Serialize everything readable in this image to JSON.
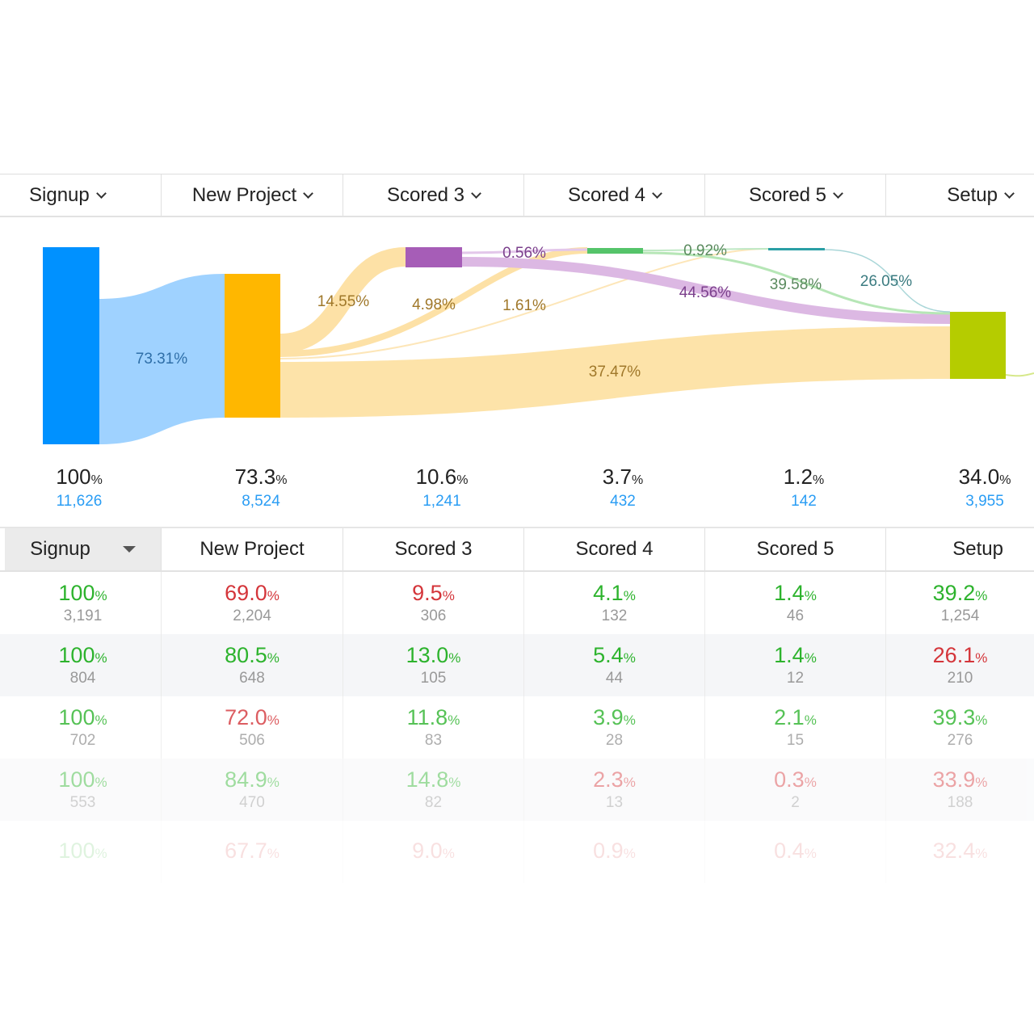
{
  "steps": [
    "Signup",
    "New Project",
    "Scored 3",
    "Scored 4",
    "Scored 5",
    "Setup"
  ],
  "chart_data": {
    "type": "sankey",
    "nodes": [
      {
        "name": "Signup",
        "percent": "100",
        "count": "11,626",
        "color": "#0091ff"
      },
      {
        "name": "New Project",
        "percent": "73.3",
        "count": "8,524",
        "color": "#ffb700"
      },
      {
        "name": "Scored 3",
        "percent": "10.6",
        "count": "1,241",
        "color": "#a65db7"
      },
      {
        "name": "Scored 4",
        "percent": "3.7",
        "count": "432",
        "color": "#55c46a"
      },
      {
        "name": "Scored 5",
        "percent": "1.2",
        "count": "142",
        "color": "#2a9fa5"
      },
      {
        "name": "Setup",
        "percent": "34.0",
        "count": "3,955",
        "color": "#b5cc00"
      }
    ],
    "links": [
      {
        "from": "Signup",
        "to": "New Project",
        "label": "73.31%"
      },
      {
        "from": "New Project",
        "to": "Scored 3",
        "label": "14.55%"
      },
      {
        "from": "New Project",
        "to": "Scored 4",
        "label": "4.98%"
      },
      {
        "from": "New Project",
        "to": "Scored 5",
        "label": "1.61%"
      },
      {
        "from": "New Project",
        "to": "Setup",
        "label": "37.47%"
      },
      {
        "from": "Scored 3",
        "to": "Scored 4",
        "label": "0.56%"
      },
      {
        "from": "Scored 3",
        "to": "Setup",
        "label": "44.56%"
      },
      {
        "from": "Scored 4",
        "to": "Scored 5",
        "label": "0.92%"
      },
      {
        "from": "Scored 4",
        "to": "Setup",
        "label": "39.58%"
      },
      {
        "from": "Scored 5",
        "to": "Setup",
        "label": "26.05%"
      }
    ]
  },
  "table": {
    "headers": [
      "Signup",
      "New Project",
      "Scored 3",
      "Scored 4",
      "Scored 5",
      "Setup"
    ],
    "rows": [
      [
        {
          "p": "100",
          "c": "3,191",
          "s": "g"
        },
        {
          "p": "69.0",
          "c": "2,204",
          "s": "r"
        },
        {
          "p": "9.5",
          "c": "306",
          "s": "r"
        },
        {
          "p": "4.1",
          "c": "132",
          "s": "g"
        },
        {
          "p": "1.4",
          "c": "46",
          "s": "g"
        },
        {
          "p": "39.2",
          "c": "1,254",
          "s": "g"
        }
      ],
      [
        {
          "p": "100",
          "c": "804",
          "s": "g"
        },
        {
          "p": "80.5",
          "c": "648",
          "s": "g"
        },
        {
          "p": "13.0",
          "c": "105",
          "s": "g"
        },
        {
          "p": "5.4",
          "c": "44",
          "s": "g"
        },
        {
          "p": "1.4",
          "c": "12",
          "s": "g"
        },
        {
          "p": "26.1",
          "c": "210",
          "s": "r"
        }
      ],
      [
        {
          "p": "100",
          "c": "702",
          "s": "g"
        },
        {
          "p": "72.0",
          "c": "506",
          "s": "r"
        },
        {
          "p": "11.8",
          "c": "83",
          "s": "g"
        },
        {
          "p": "3.9",
          "c": "28",
          "s": "g"
        },
        {
          "p": "2.1",
          "c": "15",
          "s": "g"
        },
        {
          "p": "39.3",
          "c": "276",
          "s": "g"
        }
      ],
      [
        {
          "p": "100",
          "c": "553",
          "s": "g"
        },
        {
          "p": "84.9",
          "c": "470",
          "s": "g"
        },
        {
          "p": "14.8",
          "c": "82",
          "s": "g"
        },
        {
          "p": "2.3",
          "c": "13",
          "s": "r"
        },
        {
          "p": "0.3",
          "c": "2",
          "s": "r"
        },
        {
          "p": "33.9",
          "c": "188",
          "s": "r"
        }
      ],
      [
        {
          "p": "100",
          "c": "",
          "s": "g"
        },
        {
          "p": "67.7",
          "c": "",
          "s": "r"
        },
        {
          "p": "9.0",
          "c": "",
          "s": "r"
        },
        {
          "p": "0.9",
          "c": "",
          "s": "r"
        },
        {
          "p": "0.4",
          "c": "",
          "s": "r"
        },
        {
          "p": "32.4",
          "c": "",
          "s": "r"
        }
      ]
    ]
  }
}
